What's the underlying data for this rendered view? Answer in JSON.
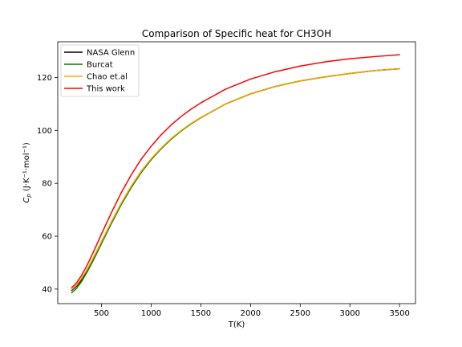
{
  "chart_data": {
    "type": "line",
    "title": "Comparison of Specific heat for CH3OH",
    "xlabel": "T(K)",
    "ylabel": "Cp (J·K⁻¹·mol⁻¹)",
    "xlim": [
      60,
      3660
    ],
    "ylim": [
      34.5,
      133.5
    ],
    "xticks": [
      500,
      1000,
      1500,
      2000,
      2500,
      3000,
      3500
    ],
    "yticks": [
      40,
      60,
      80,
      100,
      120
    ],
    "grid": false,
    "legend": "upper left",
    "x": [
      200,
      250,
      300,
      350,
      400,
      450,
      500,
      600,
      700,
      800,
      900,
      1000,
      1100,
      1200,
      1300,
      1400,
      1500,
      1750,
      2000,
      2250,
      2500,
      2750,
      3000,
      3250,
      3500
    ],
    "series": [
      {
        "name": "NASA Glenn",
        "color": "#000000",
        "values": [
          39.5,
          41.2,
          43.6,
          46.6,
          50.0,
          53.6,
          57.5,
          65.0,
          72.2,
          78.6,
          84.3,
          89.0,
          93.1,
          96.7,
          99.8,
          102.5,
          104.8,
          110.0,
          113.8,
          116.6,
          118.7,
          120.2,
          121.5,
          122.6,
          123.3
        ]
      },
      {
        "name": "Burcat",
        "color": "#008000",
        "values": [
          38.6,
          40.3,
          42.9,
          46.1,
          49.6,
          53.3,
          57.2,
          64.8,
          72.0,
          78.4,
          84.1,
          88.9,
          93.0,
          96.6,
          99.7,
          102.4,
          104.8,
          110.0,
          113.8,
          116.6,
          118.7,
          120.2,
          121.5,
          122.6,
          123.3
        ]
      },
      {
        "name": "Chao et.al",
        "color": "#ffa500",
        "values": [
          39.8,
          41.6,
          44.1,
          47.1,
          50.6,
          54.2,
          58.0,
          65.5,
          72.6,
          79.0,
          84.6,
          89.3,
          93.3,
          96.9,
          99.9,
          102.6,
          104.9,
          110.0,
          113.8,
          116.6,
          118.7,
          120.2,
          121.5,
          122.6,
          123.3
        ]
      },
      {
        "name": "This work",
        "color": "#ff0000",
        "values": [
          40.5,
          42.4,
          45.2,
          48.6,
          52.5,
          56.6,
          60.8,
          68.9,
          76.5,
          83.2,
          89.1,
          94.0,
          98.3,
          102.0,
          105.2,
          108.0,
          110.4,
          115.6,
          119.4,
          122.2,
          124.3,
          125.9,
          127.1,
          127.9,
          128.6
        ]
      }
    ]
  }
}
